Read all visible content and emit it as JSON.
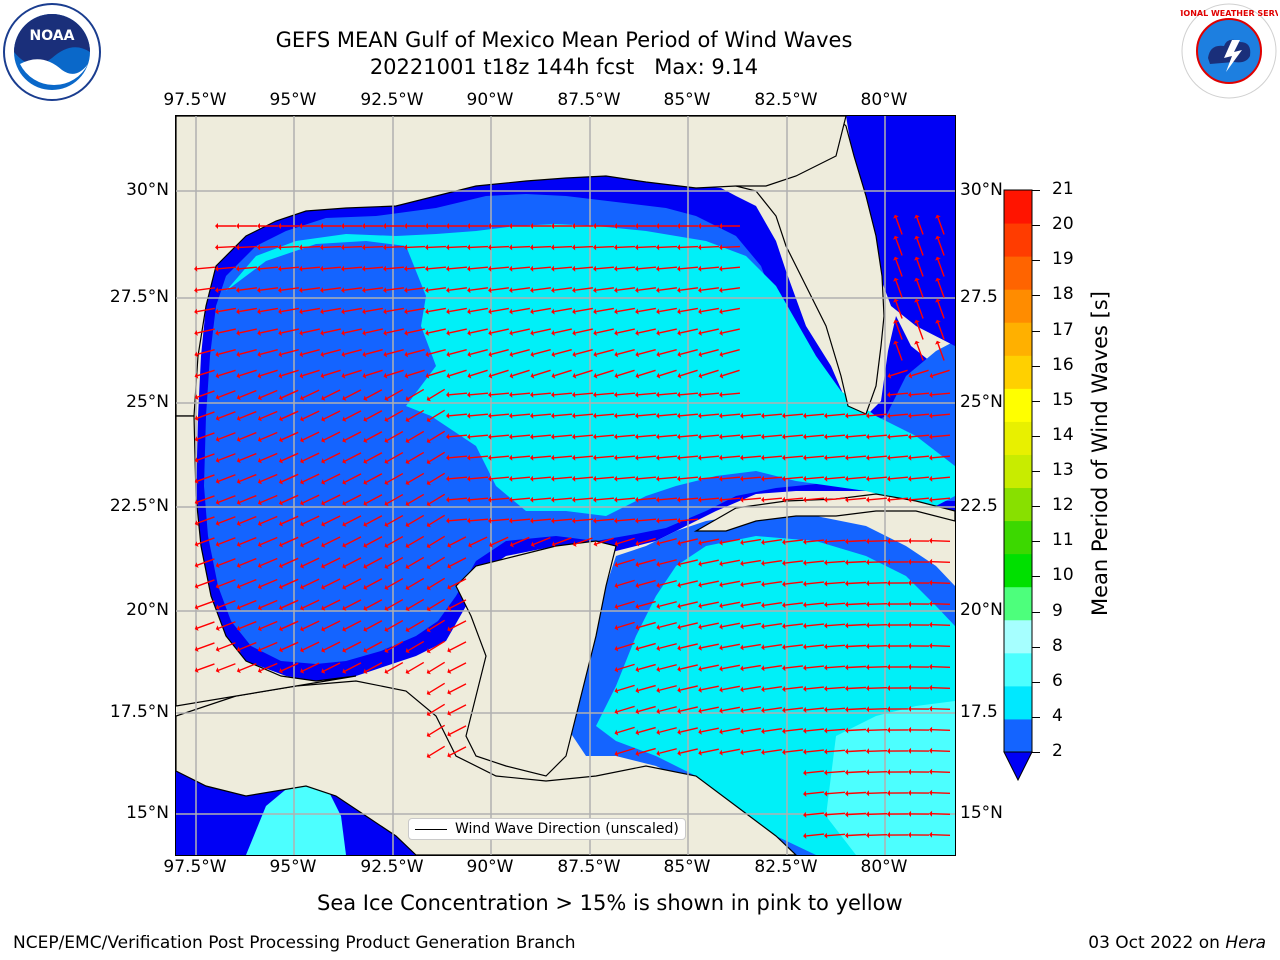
{
  "title": {
    "line1": "GEFS MEAN Gulf of Mexico Mean Period of Wind Waves",
    "line2": "20221001 t18z 144h fcst   Max: 9.14"
  },
  "map": {
    "lon_ticks": [
      "97.5°W",
      "95°W",
      "92.5°W",
      "90°W",
      "87.5°W",
      "85°W",
      "82.5°W",
      "80°W"
    ],
    "lat_ticks_left": [
      "30°N",
      "27.5°N",
      "25°N",
      "22.5°N",
      "20°N",
      "17.5°N",
      "15°N"
    ],
    "lat_ticks_right": [
      "30°N",
      "27.5",
      "25°N",
      "22.5",
      "20°N",
      "17.5",
      "15°N"
    ],
    "legend_label": "Wind Wave Direction (unscaled)",
    "colors": {
      "land": "#eeecdc",
      "ocean_low": "#0000f5",
      "ocean_mid": "#1464ff",
      "ocean_high": "#00f0f8",
      "arrow": "#ff0000"
    }
  },
  "colorbar": {
    "label": "Mean Period of Wind Waves [s]",
    "ticks": [
      "2",
      "4",
      "6",
      "8",
      "9",
      "10",
      "11",
      "12",
      "13",
      "14",
      "15",
      "16",
      "17",
      "18",
      "19",
      "20",
      "21"
    ],
    "colors": [
      "#1464ff",
      "#00e8ff",
      "#4cffff",
      "#a6ffff",
      "#4dff7c",
      "#00e000",
      "#3cd800",
      "#88e000",
      "#c8ec00",
      "#e8f000",
      "#ffff00",
      "#ffd000",
      "#ffb000",
      "#ff8c00",
      "#ff6400",
      "#ff3c00",
      "#ff1400"
    ],
    "extend_color": "#0000f5"
  },
  "logos": {
    "noaa_text": "NOAA",
    "nws_text": "NATIONAL WEATHER SERVICE"
  },
  "caption": "Sea Ice Concentration > 15% is shown in pink to yellow",
  "footer": {
    "left": "NCEP/EMC/Verification Post Processing Product Generation Branch",
    "right_prefix": "03 Oct 2022 on ",
    "right_host": "Hera"
  }
}
